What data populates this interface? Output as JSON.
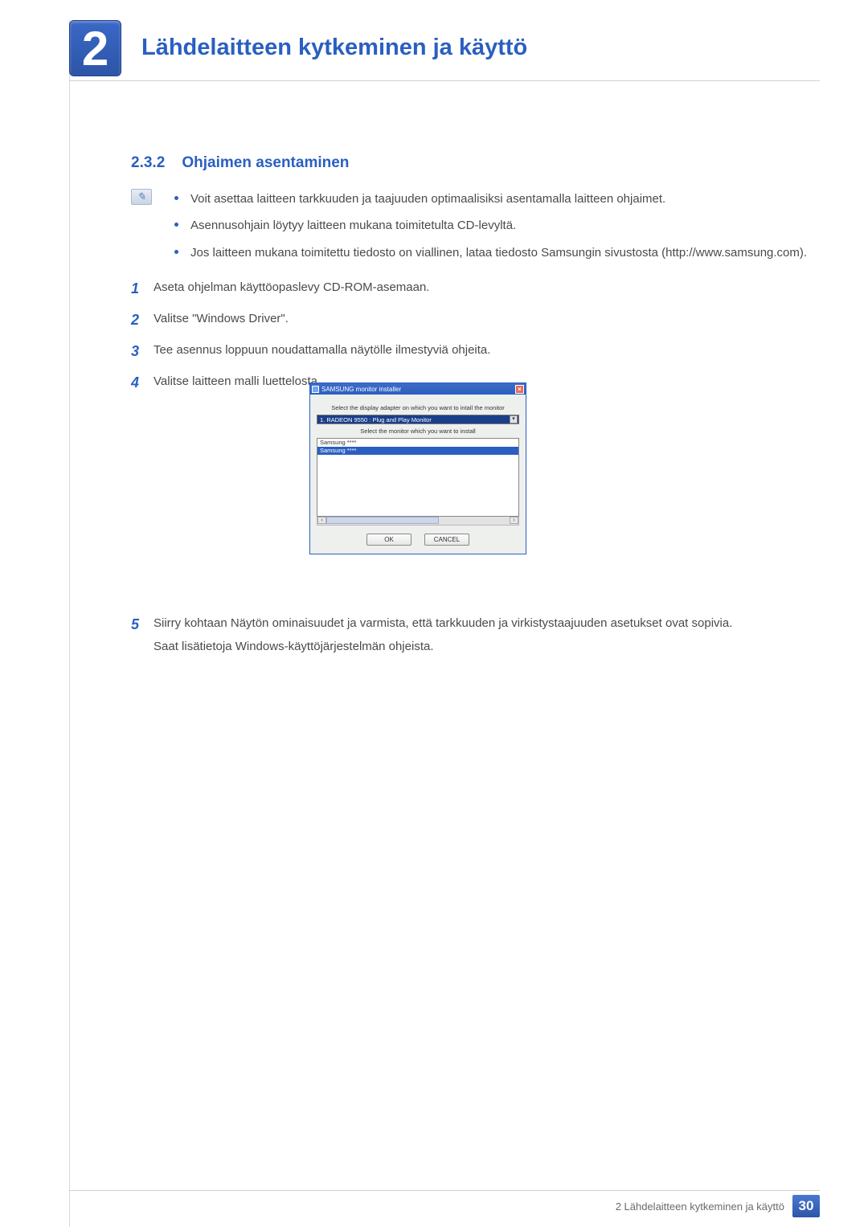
{
  "header": {
    "chapter_number": "2",
    "chapter_title": "Lähdelaitteen kytkeminen ja käyttö"
  },
  "section": {
    "number": "2.3.2",
    "title": "Ohjaimen asentaminen"
  },
  "note_bullets": [
    "Voit asettaa laitteen tarkkuuden ja taajuuden optimaalisiksi asentamalla laitteen ohjaimet.",
    "Asennusohjain löytyy laitteen mukana toimitetulta CD-levyltä.",
    "Jos laitteen mukana toimitettu tiedosto on viallinen, lataa tiedosto Samsungin sivustosta (http://www.samsung.com)."
  ],
  "steps_a": [
    {
      "n": "1",
      "t": "Aseta ohjelman käyttöopaslevy CD-ROM-asemaan."
    },
    {
      "n": "2",
      "t": "Valitse \"Windows Driver\"."
    },
    {
      "n": "3",
      "t": "Tee asennus loppuun noudattamalla näytölle ilmestyviä ohjeita."
    },
    {
      "n": "4",
      "t": "Valitse laitteen malli luettelosta."
    }
  ],
  "dialog": {
    "title": "SAMSUNG monitor installer",
    "label_adapter": "Select the display adapter on which you want to intall the monitor",
    "adapter_value": "1. RADEON 9550 : Plug and Play Monitor",
    "label_monitor": "Select the monitor which you want to install",
    "list_items": [
      "Samsung ****",
      "Samsung ****"
    ],
    "selected_index": 1,
    "ok": "OK",
    "cancel": "CANCEL"
  },
  "steps_b": {
    "n": "5",
    "line1": "Siirry kohtaan Näytön ominaisuudet ja varmista, että tarkkuuden ja virkistystaajuuden asetukset ovat sopivia.",
    "line2": "Saat lisätietoja Windows-käyttöjärjestelmän ohjeista."
  },
  "footer": {
    "text": "2 Lähdelaitteen kytkeminen ja käyttö",
    "page": "30"
  },
  "colors": {
    "accent": "#2a5fc1",
    "text": "#4a4a4a",
    "rule": "#d0d0d0"
  }
}
